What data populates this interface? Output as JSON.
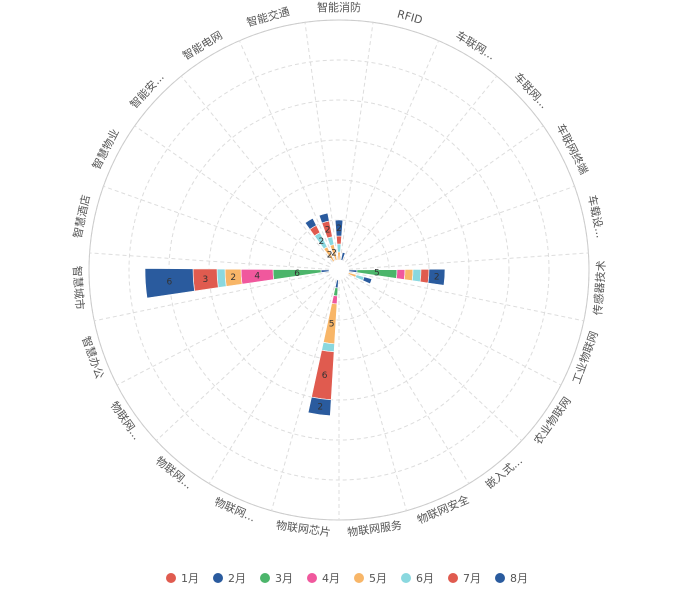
{
  "chart_data": {
    "type": "polar-stacked-bar",
    "categories": [
      "智能消防",
      "RFID",
      "车联网...",
      "车联网...",
      "车联网终端",
      "车载设...",
      "传感器技术",
      "工业物联网",
      "农业物联网",
      "嵌入式...",
      "物联网安全",
      "物联网服务",
      "物联网芯片",
      "物联网...",
      "物联网...",
      "物联网...",
      "智慧办公",
      "智慧城市",
      "智慧酒店",
      "智慧物业",
      "智能安...",
      "智能电网",
      "智能交通"
    ],
    "series": [
      {
        "name": "1月",
        "color": "#e05b4f",
        "values": [
          0,
          0,
          0,
          0,
          0,
          0,
          0,
          0,
          0,
          0,
          0,
          0,
          0,
          0,
          0,
          0,
          0,
          0,
          0,
          0,
          0,
          0,
          0
        ]
      },
      {
        "name": "2月",
        "color": "#2a5b9e",
        "values": [
          0,
          0,
          0,
          0,
          0,
          0,
          1,
          0,
          0,
          0,
          0,
          0,
          1,
          0,
          0,
          0,
          0,
          1,
          0,
          0,
          0,
          0,
          0
        ]
      },
      {
        "name": "3月",
        "color": "#4cb56b",
        "values": [
          0,
          0,
          0,
          0,
          0,
          0,
          5,
          0,
          0,
          0,
          0,
          0,
          1,
          0,
          0,
          0,
          0,
          6,
          0,
          0,
          0,
          0,
          0
        ]
      },
      {
        "name": "4月",
        "color": "#f0589d",
        "values": [
          0,
          0,
          0,
          0,
          0,
          0,
          1,
          0,
          0,
          0,
          0,
          0,
          1,
          0,
          0,
          0,
          0,
          4,
          0,
          0,
          0,
          0,
          0
        ]
      },
      {
        "name": "5月",
        "color": "#f8b668",
        "values": [
          1,
          0,
          0,
          0,
          0,
          0,
          1,
          1,
          0,
          0,
          0,
          0,
          5,
          0,
          0,
          0,
          0,
          2,
          0,
          0,
          0,
          2,
          2
        ]
      },
      {
        "name": "6月",
        "color": "#8ad8df",
        "values": [
          1,
          0,
          0,
          0,
          0,
          0,
          1,
          1,
          0,
          0,
          0,
          0,
          1,
          0,
          0,
          0,
          0,
          1,
          0,
          0,
          0,
          2,
          1
        ]
      },
      {
        "name": "7月",
        "color": "#e05b4f",
        "values": [
          1,
          0,
          0,
          0,
          0,
          0,
          1,
          0,
          0,
          0,
          0,
          0,
          6,
          0,
          0,
          0,
          0,
          3,
          0,
          0,
          0,
          1,
          2
        ]
      },
      {
        "name": "8月",
        "color": "#2a5b9e",
        "values": [
          2,
          1,
          0,
          0,
          0,
          0,
          2,
          1,
          0,
          0,
          0,
          0,
          2,
          0,
          0,
          0,
          0,
          6,
          0,
          0,
          0,
          1,
          1
        ]
      }
    ],
    "radius_max": 30,
    "grid": true,
    "legend_position": "bottom"
  }
}
